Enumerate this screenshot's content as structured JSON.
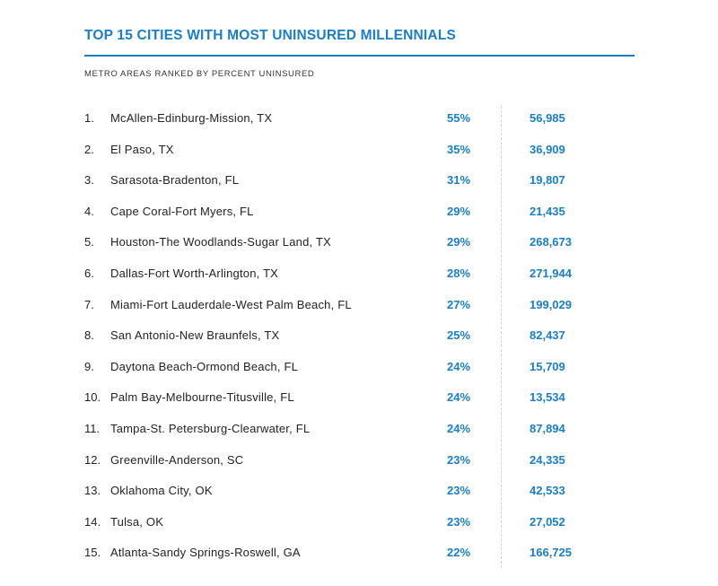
{
  "chart_data": {
    "type": "table",
    "title": "TOP 15 CITIES WITH MOST UNINSURED MILLENNIALS",
    "subtitle": "METRO AREAS RANKED BY PERCENT UNINSURED",
    "accent_color": "#1a7fc4",
    "rows": [
      {
        "rank": "1.",
        "city": "McAllen-Edinburg-Mission, TX",
        "percent": "55%",
        "count": "56,985"
      },
      {
        "rank": "2.",
        "city": "El Paso, TX",
        "percent": "35%",
        "count": "36,909"
      },
      {
        "rank": "3.",
        "city": "Sarasota-Bradenton, FL",
        "percent": "31%",
        "count": "19,807"
      },
      {
        "rank": "4.",
        "city": "Cape Coral-Fort Myers, FL",
        "percent": "29%",
        "count": "21,435"
      },
      {
        "rank": "5.",
        "city": "Houston-The Woodlands-Sugar Land, TX",
        "percent": "29%",
        "count": "268,673"
      },
      {
        "rank": "6.",
        "city": "Dallas-Fort Worth-Arlington, TX",
        "percent": "28%",
        "count": "271,944"
      },
      {
        "rank": "7.",
        "city": "Miami-Fort Lauderdale-West Palm Beach, FL",
        "percent": "27%",
        "count": "199,029"
      },
      {
        "rank": "8.",
        "city": "San Antonio-New Braunfels, TX",
        "percent": "25%",
        "count": "82,437"
      },
      {
        "rank": "9.",
        "city": "Daytona Beach-Ormond Beach, FL",
        "percent": "24%",
        "count": "15,709"
      },
      {
        "rank": "10.",
        "city": "Palm Bay-Melbourne-Titusville, FL",
        "percent": "24%",
        "count": "13,534"
      },
      {
        "rank": "11.",
        "city": "Tampa-St. Petersburg-Clearwater, FL",
        "percent": "24%",
        "count": "87,894"
      },
      {
        "rank": "12.",
        "city": "Greenville-Anderson, SC",
        "percent": "23%",
        "count": "24,335"
      },
      {
        "rank": "13.",
        "city": "Oklahoma City, OK",
        "percent": "23%",
        "count": "42,533"
      },
      {
        "rank": "14.",
        "city": "Tulsa, OK",
        "percent": "23%",
        "count": "27,052"
      },
      {
        "rank": "15.",
        "city": "Atlanta-Sandy Springs-Roswell, GA",
        "percent": "22%",
        "count": "166,725"
      }
    ]
  }
}
